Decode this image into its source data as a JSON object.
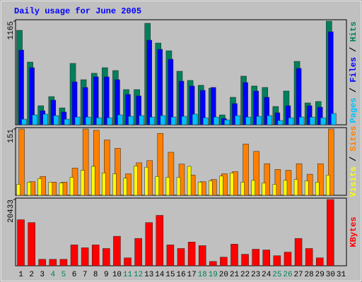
{
  "chart_data": [
    {
      "type": "bar",
      "title": "Daily usage for June 2005",
      "ylim": [
        0,
        1165
      ],
      "yticks": [
        1165
      ],
      "legend_separator": " / ",
      "series": [
        {
          "name": "Hits",
          "color": "#00805c",
          "values": [
            1062,
            705,
            214,
            317,
            190,
            690,
            507,
            579,
            642,
            610,
            396,
            396,
            1141,
            919,
            832,
            602,
            499,
            444,
            412,
            111,
            309,
            547,
            436,
            420,
            206,
            380,
            713,
            246,
            262,
            1165,
            null
          ]
        },
        {
          "name": "Files",
          "color": "#0000ff",
          "values": [
            840,
            642,
            158,
            277,
            143,
            483,
            420,
            539,
            539,
            507,
            341,
            325,
            951,
            848,
            737,
            491,
            436,
            388,
            420,
            71,
            238,
            475,
            380,
            309,
            135,
            214,
            634,
            214,
            198,
            1046,
            null
          ]
        },
        {
          "name": "Pages",
          "color": "#00c0ff",
          "values": [
            63,
            111,
            119,
            103,
            63,
            87,
            87,
            79,
            79,
            111,
            95,
            103,
            87,
            103,
            87,
            95,
            119,
            79,
            87,
            55,
            103,
            87,
            95,
            103,
            48,
            79,
            87,
            87,
            79,
            127,
            null
          ]
        }
      ]
    },
    {
      "type": "bar",
      "ylim": [
        0,
        151
      ],
      "yticks": [
        151
      ],
      "legend_separator": " / ",
      "series": [
        {
          "name": "Sites",
          "color": "#ff8000",
          "values": [
            151,
            31,
            43,
            30,
            30,
            62,
            151,
            148,
            126,
            107,
            49,
            74,
            79,
            141,
            98,
            71,
            46,
            31,
            36,
            49,
            54,
            117,
            100,
            72,
            59,
            57,
            72,
            48,
            72,
            151,
            null
          ]
        },
        {
          "name": "Visits",
          "color": "#ffff00",
          "values": [
            25,
            30,
            38,
            30,
            28,
            41,
            57,
            66,
            51,
            49,
            39,
            67,
            64,
            43,
            41,
            41,
            66,
            30,
            33,
            44,
            51,
            30,
            34,
            28,
            25,
            34,
            36,
            33,
            30,
            46,
            null
          ]
        }
      ]
    },
    {
      "type": "bar",
      "ylim": [
        0,
        20433
      ],
      "yticks": [
        20433
      ],
      "categories": [
        "1",
        "2",
        "3",
        "4",
        "5",
        "6",
        "7",
        "8",
        "9",
        "10",
        "11",
        "12",
        "13",
        "14",
        "15",
        "16",
        "17",
        "18",
        "19",
        "20",
        "21",
        "22",
        "23",
        "24",
        "25",
        "26",
        "27",
        "28",
        "29",
        "30",
        "31"
      ],
      "category_colors": [
        "#000",
        "#000",
        "#000",
        "#00805c",
        "#00805c",
        "#000",
        "#000",
        "#000",
        "#000",
        "#000",
        "#00805c",
        "#00805c",
        "#000",
        "#000",
        "#000",
        "#000",
        "#000",
        "#00805c",
        "#00805c",
        "#000",
        "#000",
        "#000",
        "#000",
        "#000",
        "#00805c",
        "#00805c",
        "#000",
        "#000",
        "#000",
        "#000",
        "#000"
      ],
      "series": [
        {
          "name": "KBytes",
          "color": "#ff0000",
          "values": [
            14214,
            13326,
            1999,
            1999,
            1999,
            6440,
            5552,
            6440,
            5330,
            9106,
            2443,
            8439,
            13326,
            15547,
            6440,
            5330,
            7329,
            6219,
            1333,
            2665,
            6663,
            3553,
            5108,
            4886,
            3109,
            4220,
            8439,
            5330,
            2443,
            20433,
            null
          ]
        }
      ]
    }
  ]
}
